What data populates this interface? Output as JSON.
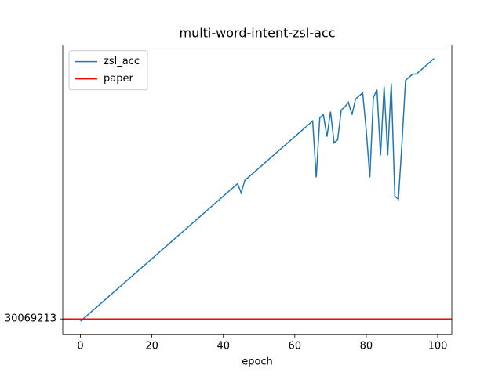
{
  "chart_data": {
    "type": "line",
    "title": "multi-word-intent-zsl-acc",
    "xlabel": "epoch",
    "x": [
      0,
      44,
      45,
      46,
      65,
      66,
      67,
      68,
      69,
      70,
      71,
      72,
      73,
      74,
      75,
      76,
      77,
      78,
      79,
      80,
      81,
      82,
      83,
      84,
      85,
      86,
      87,
      88,
      89,
      90,
      91,
      92,
      93,
      94,
      95,
      99
    ],
    "series": [
      {
        "name": "zsl_acc",
        "color": "#1f77b4",
        "values": [
          0.6315,
          0.7195,
          0.7135,
          0.7215,
          0.7595,
          0.7235,
          0.7615,
          0.7635,
          0.7495,
          0.7655,
          0.7455,
          0.7475,
          0.7665,
          0.7685,
          0.7715,
          0.7635,
          0.7735,
          0.7755,
          0.7775,
          0.7535,
          0.7235,
          0.7745,
          0.7795,
          0.7375,
          0.7815,
          0.7375,
          0.7835,
          0.7115,
          0.7095,
          0.7455,
          0.7855,
          0.7875,
          0.7895,
          0.7895,
          0.7915,
          0.7995
        ]
      },
      {
        "name": "paper",
        "color": "#ff0000",
        "hline": 0.6330069213
      }
    ],
    "xlim": [
      -4.95,
      103.95
    ],
    "xticks": [
      0,
      20,
      40,
      60,
      80,
      100
    ],
    "ylim": [
      0.623,
      0.808
    ],
    "yticks": [
      {
        "value": 0.6330069213,
        "label": "30069213"
      }
    ],
    "legend": "upper left",
    "grid": false
  }
}
